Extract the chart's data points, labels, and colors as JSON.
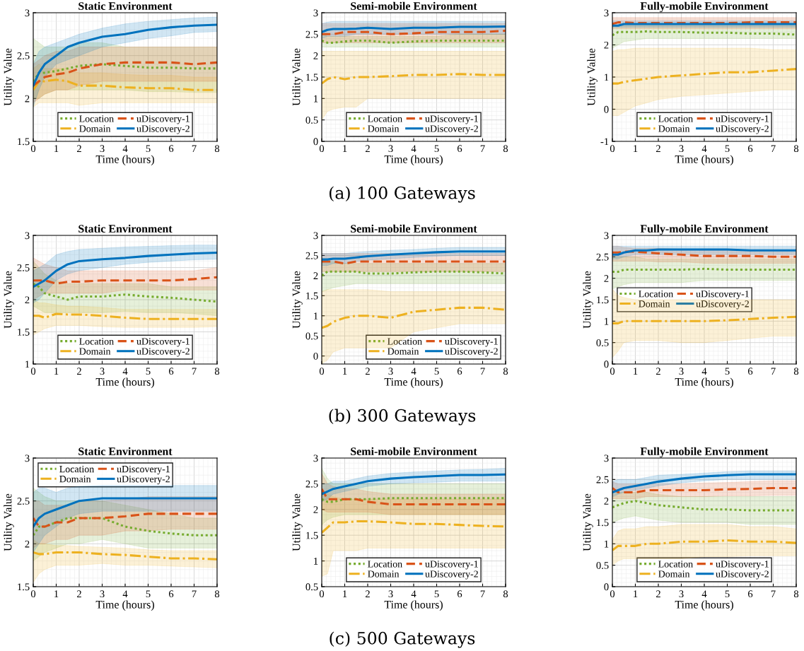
{
  "chart_data": [
    {
      "type": "line",
      "title": "Static Environment",
      "xlabel": "Time (hours)",
      "ylabel": "Utility Value",
      "xlim": [
        0,
        8
      ],
      "xticks": [
        0,
        1,
        2,
        3,
        4,
        5,
        6,
        7,
        8
      ],
      "ylim": [
        1.5,
        3
      ],
      "yticks": [
        1.5,
        2,
        2.5,
        3
      ],
      "grid": true,
      "legend": "bottom",
      "x": [
        0,
        0.25,
        0.5,
        1,
        1.5,
        2,
        3,
        4,
        5,
        6,
        7,
        8
      ],
      "series": [
        {
          "name": "Location",
          "color": "#77ac30",
          "line_style": "dotted",
          "values": [
            2.2,
            2.3,
            2.3,
            2.32,
            2.35,
            2.38,
            2.4,
            2.38,
            2.36,
            2.36,
            2.35,
            2.35
          ],
          "lower": [
            2.0,
            2.0,
            2.05,
            2.1,
            2.1,
            2.1,
            2.1,
            2.1,
            2.08,
            2.08,
            2.07,
            2.07
          ],
          "upper": [
            2.7,
            2.65,
            2.6,
            2.6,
            2.6,
            2.65,
            2.65,
            2.6,
            2.6,
            2.6,
            2.6,
            2.6
          ]
        },
        {
          "name": "Domain",
          "color": "#edb120",
          "line_style": "dashdot",
          "values": [
            2.1,
            2.2,
            2.2,
            2.22,
            2.2,
            2.15,
            2.15,
            2.13,
            2.12,
            2.12,
            2.1,
            2.1
          ],
          "lower": [
            1.9,
            1.95,
            1.95,
            1.95,
            1.95,
            1.92,
            1.95,
            1.95,
            1.95,
            1.95,
            1.95,
            1.95
          ],
          "upper": [
            2.35,
            2.4,
            2.35,
            2.35,
            2.35,
            2.3,
            2.3,
            2.28,
            2.27,
            2.27,
            2.25,
            2.25
          ]
        },
        {
          "name": "uDiscovery-1",
          "color": "#d95319",
          "line_style": "dashed",
          "values": [
            2.15,
            2.2,
            2.25,
            2.28,
            2.3,
            2.35,
            2.4,
            2.42,
            2.42,
            2.42,
            2.4,
            2.42
          ],
          "lower": [
            1.95,
            2.0,
            2.05,
            2.1,
            2.1,
            2.15,
            2.2,
            2.2,
            2.2,
            2.2,
            2.2,
            2.2
          ],
          "upper": [
            2.4,
            2.45,
            2.5,
            2.55,
            2.55,
            2.6,
            2.6,
            2.6,
            2.6,
            2.6,
            2.6,
            2.6
          ]
        },
        {
          "name": "uDiscovery-2",
          "color": "#0072bd",
          "line_style": "solid",
          "values": [
            2.15,
            2.3,
            2.4,
            2.5,
            2.6,
            2.65,
            2.72,
            2.75,
            2.8,
            2.83,
            2.85,
            2.86
          ],
          "lower": [
            1.9,
            2.1,
            2.25,
            2.4,
            2.45,
            2.5,
            2.6,
            2.65,
            2.7,
            2.73,
            2.77,
            2.78
          ],
          "upper": [
            2.4,
            2.55,
            2.6,
            2.65,
            2.7,
            2.75,
            2.82,
            2.87,
            2.9,
            2.92,
            2.94,
            2.95
          ]
        }
      ]
    },
    {
      "type": "line",
      "title": "Semi-mobile Environment",
      "xlabel": "Time (hours)",
      "ylabel": "Utility Value",
      "xlim": [
        0,
        8
      ],
      "xticks": [
        0,
        1,
        2,
        3,
        4,
        5,
        6,
        7,
        8
      ],
      "ylim": [
        0,
        3
      ],
      "yticks": [
        0,
        0.5,
        1,
        1.5,
        2,
        2.5,
        3
      ],
      "grid": true,
      "legend": "bottom",
      "annotations": [
        "(a) 100 Gateways"
      ],
      "x": [
        0,
        0.25,
        0.5,
        1,
        1.5,
        2,
        3,
        4,
        5,
        6,
        7,
        8
      ],
      "series": [
        {
          "name": "Location",
          "color": "#77ac30",
          "line_style": "dotted",
          "values": [
            2.35,
            2.3,
            2.3,
            2.33,
            2.35,
            2.35,
            2.3,
            2.33,
            2.35,
            2.35,
            2.35,
            2.35
          ],
          "lower": [
            2.2,
            2.2,
            2.2,
            2.2,
            2.2,
            2.2,
            2.2,
            2.2,
            2.2,
            2.2,
            2.2,
            2.2
          ],
          "upper": [
            2.5,
            2.45,
            2.45,
            2.45,
            2.45,
            2.45,
            2.45,
            2.45,
            2.45,
            2.5,
            2.5,
            2.5
          ]
        },
        {
          "name": "Domain",
          "color": "#edb120",
          "line_style": "dashdot",
          "values": [
            1.35,
            1.45,
            1.5,
            1.45,
            1.5,
            1.5,
            1.52,
            1.55,
            1.55,
            1.57,
            1.55,
            1.55
          ],
          "lower": [
            0.5,
            0.7,
            0.75,
            0.8,
            0.8,
            1.0,
            1.0,
            1.0,
            1.0,
            1.0,
            1.0,
            1.0
          ],
          "upper": [
            2.1,
            2.1,
            2.1,
            2.1,
            2.1,
            2.1,
            2.1,
            2.1,
            2.1,
            2.1,
            2.1,
            2.1
          ]
        },
        {
          "name": "uDiscovery-1",
          "color": "#d95319",
          "line_style": "dashed",
          "values": [
            2.5,
            2.5,
            2.5,
            2.55,
            2.55,
            2.55,
            2.5,
            2.52,
            2.55,
            2.55,
            2.55,
            2.58
          ],
          "lower": [
            2.3,
            2.3,
            2.3,
            2.3,
            2.3,
            2.3,
            2.3,
            2.3,
            2.3,
            2.3,
            2.3,
            2.3
          ],
          "upper": [
            2.75,
            2.75,
            2.75,
            2.75,
            2.75,
            2.75,
            2.75,
            2.75,
            2.75,
            2.75,
            2.75,
            2.75
          ]
        },
        {
          "name": "uDiscovery-2",
          "color": "#0072bd",
          "line_style": "solid",
          "values": [
            2.55,
            2.6,
            2.62,
            2.62,
            2.63,
            2.65,
            2.62,
            2.65,
            2.65,
            2.67,
            2.67,
            2.68
          ],
          "lower": [
            2.4,
            2.45,
            2.45,
            2.45,
            2.5,
            2.5,
            2.5,
            2.5,
            2.5,
            2.5,
            2.5,
            2.5
          ],
          "upper": [
            2.75,
            2.78,
            2.8,
            2.8,
            2.8,
            2.8,
            2.8,
            2.8,
            2.8,
            2.8,
            2.8,
            2.8
          ]
        }
      ]
    },
    {
      "type": "line",
      "title": "Fully-mobile Environment",
      "xlabel": "Time (hours)",
      "ylabel": "Utility Value",
      "xlim": [
        0,
        8
      ],
      "xticks": [
        0,
        1,
        2,
        3,
        4,
        5,
        6,
        7,
        8
      ],
      "ylim": [
        -1,
        3
      ],
      "yticks": [
        -1,
        0,
        1,
        2,
        3
      ],
      "grid": true,
      "legend": "bottom",
      "x": [
        0,
        0.25,
        0.5,
        1,
        1.5,
        2,
        3,
        4,
        5,
        6,
        7,
        8
      ],
      "series": [
        {
          "name": "Location",
          "color": "#77ac30",
          "line_style": "dotted",
          "values": [
            2.3,
            2.4,
            2.4,
            2.4,
            2.42,
            2.4,
            2.4,
            2.38,
            2.38,
            2.35,
            2.35,
            2.32
          ],
          "lower": [
            1.9,
            2.0,
            2.1,
            2.15,
            2.2,
            2.2,
            2.2,
            2.2,
            2.2,
            2.2,
            2.2,
            2.2
          ],
          "upper": [
            2.6,
            2.6,
            2.6,
            2.6,
            2.6,
            2.6,
            2.6,
            2.6,
            2.6,
            2.6,
            2.6,
            2.6
          ]
        },
        {
          "name": "Domain",
          "color": "#edb120",
          "line_style": "dashdot",
          "values": [
            0.8,
            0.8,
            0.85,
            0.9,
            0.95,
            1.0,
            1.05,
            1.1,
            1.15,
            1.15,
            1.2,
            1.25
          ],
          "lower": [
            -0.2,
            -0.2,
            -0.1,
            0.1,
            0.2,
            0.3,
            0.4,
            0.45,
            0.5,
            0.55,
            0.6,
            0.6
          ],
          "upper": [
            1.8,
            1.85,
            1.85,
            1.9,
            1.9,
            1.9,
            1.9,
            1.9,
            1.9,
            1.9,
            1.85,
            1.85
          ]
        },
        {
          "name": "uDiscovery-1",
          "color": "#d95319",
          "line_style": "dashed",
          "values": [
            2.65,
            2.7,
            2.7,
            2.68,
            2.68,
            2.68,
            2.68,
            2.68,
            2.68,
            2.7,
            2.7,
            2.7
          ],
          "lower": [
            2.5,
            2.5,
            2.5,
            2.5,
            2.5,
            2.5,
            2.5,
            2.5,
            2.5,
            2.5,
            2.5,
            2.5
          ],
          "upper": [
            2.85,
            2.85,
            2.85,
            2.85,
            2.85,
            2.85,
            2.85,
            2.85,
            2.85,
            2.85,
            2.85,
            2.85
          ]
        },
        {
          "name": "uDiscovery-2",
          "color": "#0072bd",
          "line_style": "solid",
          "values": [
            2.6,
            2.6,
            2.65,
            2.65,
            2.65,
            2.65,
            2.65,
            2.65,
            2.65,
            2.65,
            2.65,
            2.65
          ],
          "lower": [
            2.55,
            2.55,
            2.55,
            2.55,
            2.55,
            2.55,
            2.55,
            2.55,
            2.55,
            2.55,
            2.55,
            2.55
          ],
          "upper": [
            2.75,
            2.75,
            2.75,
            2.75,
            2.75,
            2.75,
            2.75,
            2.75,
            2.75,
            2.75,
            2.75,
            2.75
          ]
        }
      ]
    },
    {
      "type": "line",
      "title": "Static Environment",
      "xlabel": "Time (hours)",
      "ylabel": "Utility Value",
      "xlim": [
        0,
        8
      ],
      "xticks": [
        0,
        1,
        2,
        3,
        4,
        5,
        6,
        7,
        8
      ],
      "ylim": [
        1,
        3
      ],
      "yticks": [
        1,
        1.5,
        2,
        2.5,
        3
      ],
      "grid": true,
      "legend": "bottom",
      "x": [
        0,
        0.25,
        0.5,
        1,
        1.5,
        2,
        3,
        4,
        5,
        6,
        7,
        8
      ],
      "series": [
        {
          "name": "Location",
          "color": "#77ac30",
          "line_style": "dotted",
          "values": [
            2.25,
            2.2,
            2.1,
            2.05,
            2.0,
            2.05,
            2.05,
            2.08,
            2.05,
            2.03,
            2.0,
            1.97
          ],
          "lower": [
            1.9,
            1.85,
            1.8,
            1.8,
            1.8,
            1.8,
            1.8,
            1.82,
            1.8,
            1.8,
            1.78,
            1.75
          ],
          "upper": [
            2.6,
            2.5,
            2.4,
            2.3,
            2.25,
            2.25,
            2.25,
            2.25,
            2.25,
            2.2,
            2.2,
            2.2
          ]
        },
        {
          "name": "Domain",
          "color": "#edb120",
          "line_style": "dashdot",
          "values": [
            1.75,
            1.75,
            1.72,
            1.78,
            1.77,
            1.77,
            1.75,
            1.72,
            1.7,
            1.7,
            1.7,
            1.7
          ],
          "lower": [
            1.45,
            1.5,
            1.55,
            1.6,
            1.6,
            1.6,
            1.58,
            1.57,
            1.57,
            1.57,
            1.57,
            1.58
          ],
          "upper": [
            2.0,
            1.95,
            1.95,
            1.92,
            1.9,
            1.9,
            1.88,
            1.85,
            1.85,
            1.85,
            1.85,
            1.85
          ]
        },
        {
          "name": "uDiscovery-1",
          "color": "#d95319",
          "line_style": "dashed",
          "values": [
            2.3,
            2.3,
            2.3,
            2.25,
            2.28,
            2.28,
            2.3,
            2.3,
            2.3,
            2.3,
            2.32,
            2.35
          ],
          "lower": [
            2.0,
            2.05,
            2.1,
            2.1,
            2.1,
            2.1,
            2.1,
            2.15,
            2.15,
            2.15,
            2.15,
            2.15
          ],
          "upper": [
            2.65,
            2.6,
            2.55,
            2.5,
            2.45,
            2.45,
            2.45,
            2.45,
            2.45,
            2.45,
            2.45,
            2.5
          ]
        },
        {
          "name": "uDiscovery-2",
          "color": "#0072bd",
          "line_style": "solid",
          "values": [
            2.2,
            2.25,
            2.3,
            2.45,
            2.55,
            2.6,
            2.63,
            2.65,
            2.68,
            2.7,
            2.72,
            2.73
          ],
          "lower": [
            1.95,
            2.0,
            2.1,
            2.3,
            2.4,
            2.45,
            2.5,
            2.55,
            2.58,
            2.6,
            2.62,
            2.63
          ],
          "upper": [
            2.45,
            2.5,
            2.55,
            2.7,
            2.75,
            2.78,
            2.8,
            2.82,
            2.83,
            2.84,
            2.85,
            2.85
          ]
        }
      ]
    },
    {
      "type": "line",
      "title": "Semi-mobile Environment",
      "xlabel": "Time (hours)",
      "ylabel": "Utility Value",
      "xlim": [
        0,
        8
      ],
      "xticks": [
        0,
        1,
        2,
        3,
        4,
        5,
        6,
        7,
        8
      ],
      "ylim": [
        -0.2,
        3
      ],
      "yticks": [
        0,
        0.5,
        1,
        1.5,
        2,
        2.5,
        3
      ],
      "grid": true,
      "legend": "bottom right",
      "annotations": [
        "(b) 300 Gateways"
      ],
      "x": [
        0,
        0.25,
        0.5,
        1,
        1.5,
        2,
        3,
        4,
        5,
        6,
        7,
        8
      ],
      "series": [
        {
          "name": "Location",
          "color": "#77ac30",
          "line_style": "dotted",
          "values": [
            2.0,
            2.1,
            2.1,
            2.1,
            2.1,
            2.05,
            2.05,
            2.08,
            2.1,
            2.1,
            2.08,
            2.05
          ],
          "lower": [
            1.6,
            1.65,
            1.7,
            1.75,
            1.8,
            1.8,
            1.8,
            1.8,
            1.8,
            1.8,
            1.8,
            1.8
          ],
          "upper": [
            2.4,
            2.35,
            2.35,
            2.3,
            2.3,
            2.3,
            2.3,
            2.3,
            2.3,
            2.3,
            2.3,
            2.3
          ]
        },
        {
          "name": "Domain",
          "color": "#edb120",
          "line_style": "dashdot",
          "values": [
            0.7,
            0.75,
            0.85,
            0.95,
            1.0,
            1.0,
            0.95,
            1.1,
            1.15,
            1.2,
            1.2,
            1.15
          ],
          "lower": [
            -0.2,
            -0.1,
            0.1,
            0.2,
            0.2,
            0.2,
            0.2,
            0.6,
            0.7,
            0.8,
            0.8,
            0.8
          ],
          "upper": [
            1.6,
            1.65,
            1.65,
            1.65,
            1.65,
            1.65,
            1.6,
            1.6,
            1.6,
            1.6,
            1.6,
            1.6
          ]
        },
        {
          "name": "uDiscovery-1",
          "color": "#d95319",
          "line_style": "dashed",
          "values": [
            2.35,
            2.35,
            2.35,
            2.3,
            2.35,
            2.35,
            2.35,
            2.35,
            2.35,
            2.35,
            2.35,
            2.35
          ],
          "lower": [
            2.1,
            2.1,
            2.1,
            2.1,
            2.1,
            2.1,
            2.1,
            2.1,
            2.1,
            2.1,
            2.1,
            2.1
          ],
          "upper": [
            2.55,
            2.55,
            2.55,
            2.55,
            2.55,
            2.55,
            2.55,
            2.55,
            2.55,
            2.55,
            2.55,
            2.55
          ]
        },
        {
          "name": "uDiscovery-2",
          "color": "#0072bd",
          "line_style": "solid",
          "values": [
            2.4,
            2.4,
            2.42,
            2.42,
            2.45,
            2.48,
            2.52,
            2.55,
            2.58,
            2.6,
            2.6,
            2.6
          ],
          "lower": [
            2.25,
            2.25,
            2.3,
            2.3,
            2.35,
            2.38,
            2.42,
            2.45,
            2.48,
            2.5,
            2.5,
            2.5
          ],
          "upper": [
            2.55,
            2.55,
            2.55,
            2.55,
            2.58,
            2.6,
            2.63,
            2.65,
            2.68,
            2.7,
            2.7,
            2.7
          ]
        }
      ]
    },
    {
      "type": "line",
      "title": "Fully-mobile Environment",
      "xlabel": "Time (hours)",
      "ylabel": "Utility Value",
      "xlim": [
        0,
        8
      ],
      "xticks": [
        0,
        1,
        2,
        3,
        4,
        5,
        6,
        7,
        8
      ],
      "ylim": [
        0,
        3
      ],
      "yticks": [
        0,
        0.5,
        1,
        1.5,
        2,
        2.5,
        3
      ],
      "grid": true,
      "legend": "left",
      "x": [
        0,
        0.25,
        0.5,
        1,
        1.5,
        2,
        3,
        4,
        5,
        6,
        7,
        8
      ],
      "series": [
        {
          "name": "Location",
          "color": "#77ac30",
          "line_style": "dotted",
          "values": [
            2.15,
            2.15,
            2.2,
            2.2,
            2.2,
            2.2,
            2.2,
            2.22,
            2.2,
            2.2,
            2.2,
            2.2
          ],
          "lower": [
            1.75,
            1.8,
            1.85,
            1.9,
            1.9,
            1.9,
            1.9,
            1.95,
            1.95,
            1.95,
            1.95,
            1.95
          ],
          "upper": [
            2.5,
            2.5,
            2.5,
            2.5,
            2.45,
            2.45,
            2.45,
            2.45,
            2.45,
            2.45,
            2.45,
            2.45
          ]
        },
        {
          "name": "Domain",
          "color": "#edb120",
          "line_style": "dashdot",
          "values": [
            0.95,
            0.95,
            1.0,
            1.0,
            1.0,
            1.0,
            1.0,
            1.0,
            1.02,
            1.05,
            1.08,
            1.1
          ],
          "lower": [
            0.15,
            0.3,
            0.5,
            0.55,
            0.55,
            0.55,
            0.5,
            0.5,
            0.55,
            0.6,
            0.65,
            0.65
          ],
          "upper": [
            1.75,
            1.6,
            1.55,
            1.5,
            1.5,
            1.5,
            1.5,
            1.5,
            1.5,
            1.5,
            1.5,
            1.5
          ]
        },
        {
          "name": "uDiscovery-1",
          "color": "#d95319",
          "line_style": "dashed",
          "values": [
            2.6,
            2.6,
            2.62,
            2.62,
            2.6,
            2.58,
            2.55,
            2.52,
            2.52,
            2.52,
            2.5,
            2.5
          ],
          "lower": [
            2.4,
            2.4,
            2.4,
            2.4,
            2.4,
            2.38,
            2.38,
            2.35,
            2.35,
            2.35,
            2.35,
            2.35
          ],
          "upper": [
            2.75,
            2.75,
            2.72,
            2.7,
            2.7,
            2.7,
            2.68,
            2.65,
            2.65,
            2.65,
            2.65,
            2.65
          ]
        },
        {
          "name": "uDiscovery-2",
          "color": "#0072bd",
          "line_style": "solid",
          "values": [
            2.55,
            2.55,
            2.6,
            2.65,
            2.65,
            2.67,
            2.67,
            2.67,
            2.67,
            2.65,
            2.65,
            2.65
          ],
          "lower": [
            2.45,
            2.45,
            2.5,
            2.55,
            2.55,
            2.55,
            2.55,
            2.55,
            2.55,
            2.55,
            2.55,
            2.55
          ],
          "upper": [
            2.75,
            2.75,
            2.75,
            2.75,
            2.75,
            2.75,
            2.75,
            2.75,
            2.75,
            2.75,
            2.75,
            2.75
          ]
        }
      ]
    },
    {
      "type": "line",
      "title": "Static Environment",
      "xlabel": "Time (hours)",
      "ylabel": "Utility Value",
      "xlim": [
        0,
        8
      ],
      "xticks": [
        0,
        1,
        2,
        3,
        4,
        5,
        6,
        7,
        8
      ],
      "ylim": [
        1.5,
        3
      ],
      "yticks": [
        1.5,
        2,
        2.5,
        3
      ],
      "grid": true,
      "legend": "top left",
      "x": [
        0,
        0.25,
        0.5,
        1,
        1.5,
        2,
        3,
        4,
        5,
        6,
        7,
        8
      ],
      "series": [
        {
          "name": "Location",
          "color": "#77ac30",
          "line_style": "dotted",
          "values": [
            2.1,
            2.2,
            2.2,
            2.25,
            2.3,
            2.3,
            2.3,
            2.2,
            2.15,
            2.12,
            2.1,
            2.1
          ],
          "lower": [
            1.8,
            1.85,
            1.9,
            1.95,
            2.0,
            2.0,
            2.05,
            2.0,
            1.95,
            1.95,
            1.95,
            1.95
          ],
          "upper": [
            2.65,
            2.6,
            2.55,
            2.5,
            2.5,
            2.5,
            2.5,
            2.45,
            2.4,
            2.35,
            2.3,
            2.3
          ]
        },
        {
          "name": "Domain",
          "color": "#edb120",
          "line_style": "dashdot",
          "values": [
            1.9,
            1.88,
            1.88,
            1.9,
            1.9,
            1.9,
            1.88,
            1.87,
            1.85,
            1.83,
            1.83,
            1.82
          ],
          "lower": [
            1.55,
            1.65,
            1.7,
            1.75,
            1.75,
            1.75,
            1.77,
            1.75,
            1.75,
            1.74,
            1.73,
            1.72
          ],
          "upper": [
            2.05,
            2.0,
            2.0,
            1.98,
            1.98,
            1.97,
            1.96,
            1.95,
            1.93,
            1.92,
            1.92,
            1.92
          ]
        },
        {
          "name": "uDiscovery-1",
          "color": "#d95319",
          "line_style": "dashed",
          "values": [
            2.3,
            2.2,
            2.2,
            2.25,
            2.25,
            2.3,
            2.3,
            2.32,
            2.35,
            2.35,
            2.35,
            2.35
          ],
          "lower": [
            1.95,
            2.0,
            2.0,
            2.05,
            2.05,
            2.1,
            2.1,
            2.15,
            2.15,
            2.17,
            2.17,
            2.17
          ],
          "upper": [
            2.5,
            2.5,
            2.45,
            2.45,
            2.45,
            2.5,
            2.5,
            2.52,
            2.55,
            2.55,
            2.55,
            2.55
          ]
        },
        {
          "name": "uDiscovery-2",
          "color": "#0072bd",
          "line_style": "solid",
          "values": [
            2.2,
            2.3,
            2.35,
            2.4,
            2.45,
            2.5,
            2.53,
            2.53,
            2.53,
            2.53,
            2.53,
            2.53
          ],
          "lower": [
            1.9,
            2.0,
            2.1,
            2.2,
            2.3,
            2.35,
            2.38,
            2.38,
            2.38,
            2.38,
            2.38,
            2.38
          ],
          "upper": [
            2.6,
            2.65,
            2.65,
            2.6,
            2.65,
            2.67,
            2.68,
            2.68,
            2.68,
            2.68,
            2.68,
            2.68
          ]
        }
      ]
    },
    {
      "type": "line",
      "title": "Semi-mobile Environment",
      "xlabel": "Time (hours)",
      "ylabel": "Utility Value",
      "xlim": [
        0,
        8
      ],
      "xticks": [
        0,
        1,
        2,
        3,
        4,
        5,
        6,
        7,
        8
      ],
      "ylim": [
        0.5,
        3
      ],
      "yticks": [
        0.5,
        1,
        1.5,
        2,
        2.5,
        3
      ],
      "grid": true,
      "legend": "bottom",
      "annotations": [
        "(c) 500 Gateways"
      ],
      "x": [
        0,
        0.25,
        0.5,
        1,
        1.5,
        2,
        3,
        4,
        5,
        6,
        7,
        8
      ],
      "series": [
        {
          "name": "Location",
          "color": "#77ac30",
          "line_style": "dotted",
          "values": [
            2.2,
            2.15,
            2.15,
            2.2,
            2.2,
            2.2,
            2.22,
            2.22,
            2.22,
            2.22,
            2.22,
            2.22
          ],
          "lower": [
            1.7,
            1.8,
            1.85,
            1.9,
            1.9,
            1.9,
            1.9,
            1.9,
            1.9,
            1.9,
            1.9,
            1.9
          ],
          "upper": [
            2.8,
            2.6,
            2.5,
            2.5,
            2.5,
            2.5,
            2.5,
            2.5,
            2.5,
            2.5,
            2.5,
            2.5
          ]
        },
        {
          "name": "Domain",
          "color": "#edb120",
          "line_style": "dashdot",
          "values": [
            1.55,
            1.65,
            1.75,
            1.75,
            1.77,
            1.77,
            1.75,
            1.72,
            1.72,
            1.7,
            1.68,
            1.67
          ],
          "lower": [
            0.7,
            0.75,
            1.2,
            1.2,
            1.2,
            1.25,
            1.25,
            1.25,
            1.25,
            1.25,
            1.25,
            1.25
          ],
          "upper": [
            2.3,
            2.3,
            2.25,
            2.2,
            2.2,
            2.2,
            2.2,
            2.2,
            2.2,
            2.2,
            2.2,
            2.2
          ]
        },
        {
          "name": "uDiscovery-1",
          "color": "#d95319",
          "line_style": "dashed",
          "values": [
            2.4,
            2.2,
            2.2,
            2.2,
            2.2,
            2.15,
            2.1,
            2.1,
            2.1,
            2.1,
            2.1,
            2.1
          ],
          "lower": [
            2.0,
            1.95,
            1.95,
            1.95,
            1.95,
            1.95,
            1.9,
            1.9,
            1.9,
            1.9,
            1.9,
            1.9
          ],
          "upper": [
            2.7,
            2.5,
            2.45,
            2.4,
            2.4,
            2.35,
            2.3,
            2.3,
            2.3,
            2.3,
            2.3,
            2.3
          ]
        },
        {
          "name": "uDiscovery-2",
          "color": "#0072bd",
          "line_style": "solid",
          "values": [
            2.3,
            2.35,
            2.4,
            2.45,
            2.5,
            2.55,
            2.6,
            2.63,
            2.65,
            2.67,
            2.67,
            2.68
          ],
          "lower": [
            2.15,
            2.2,
            2.3,
            2.35,
            2.4,
            2.45,
            2.5,
            2.52,
            2.53,
            2.55,
            2.55,
            2.55
          ],
          "upper": [
            2.5,
            2.5,
            2.55,
            2.55,
            2.6,
            2.65,
            2.7,
            2.73,
            2.75,
            2.77,
            2.78,
            2.8
          ]
        }
      ]
    },
    {
      "type": "line",
      "title": "Fully-mobile Environment",
      "xlabel": "Time (hours)",
      "ylabel": "Utility Value",
      "xlim": [
        0,
        8
      ],
      "xticks": [
        0,
        1,
        2,
        3,
        4,
        5,
        6,
        7,
        8
      ],
      "ylim": [
        0,
        3
      ],
      "yticks": [
        0,
        0.5,
        1,
        1.5,
        2,
        2.5,
        3
      ],
      "grid": true,
      "legend": "bottom",
      "x": [
        0,
        0.25,
        0.5,
        1,
        1.5,
        2,
        3,
        4,
        5,
        6,
        7,
        8
      ],
      "series": [
        {
          "name": "Location",
          "color": "#77ac30",
          "line_style": "dotted",
          "values": [
            1.85,
            1.9,
            1.95,
            2.0,
            1.95,
            1.9,
            1.85,
            1.8,
            1.8,
            1.78,
            1.78,
            1.78
          ],
          "lower": [
            1.5,
            1.55,
            1.6,
            1.65,
            1.6,
            1.55,
            1.5,
            1.5,
            1.5,
            1.45,
            1.45,
            1.45
          ],
          "upper": [
            2.15,
            2.2,
            2.2,
            2.2,
            2.2,
            2.15,
            2.1,
            2.1,
            2.1,
            2.1,
            2.1,
            2.1
          ]
        },
        {
          "name": "Domain",
          "color": "#edb120",
          "line_style": "dashdot",
          "values": [
            0.85,
            0.95,
            0.95,
            0.95,
            1.0,
            1.0,
            1.05,
            1.05,
            1.08,
            1.05,
            1.05,
            1.02
          ],
          "lower": [
            0.5,
            0.6,
            0.65,
            0.65,
            0.65,
            0.65,
            0.65,
            0.7,
            0.7,
            0.72,
            0.72,
            0.72
          ],
          "upper": [
            1.1,
            1.3,
            1.35,
            1.35,
            1.4,
            1.4,
            1.45,
            1.45,
            1.45,
            1.4,
            1.4,
            1.35
          ]
        },
        {
          "name": "uDiscovery-1",
          "color": "#d95319",
          "line_style": "dashed",
          "values": [
            2.3,
            2.2,
            2.2,
            2.2,
            2.25,
            2.25,
            2.25,
            2.25,
            2.27,
            2.28,
            2.3,
            2.3
          ],
          "lower": [
            2.05,
            2.05,
            2.05,
            2.05,
            2.1,
            2.1,
            2.1,
            2.1,
            2.12,
            2.12,
            2.13,
            2.13
          ],
          "upper": [
            2.45,
            2.4,
            2.4,
            2.4,
            2.4,
            2.4,
            2.4,
            2.42,
            2.43,
            2.45,
            2.47,
            2.47
          ]
        },
        {
          "name": "uDiscovery-2",
          "color": "#0072bd",
          "line_style": "solid",
          "values": [
            2.2,
            2.25,
            2.3,
            2.35,
            2.4,
            2.45,
            2.52,
            2.57,
            2.6,
            2.62,
            2.62,
            2.62
          ],
          "lower": [
            2.1,
            2.15,
            2.2,
            2.25,
            2.3,
            2.35,
            2.42,
            2.47,
            2.5,
            2.5,
            2.5,
            2.5
          ],
          "upper": [
            2.45,
            2.5,
            2.5,
            2.5,
            2.55,
            2.6,
            2.62,
            2.65,
            2.68,
            2.7,
            2.7,
            2.7
          ]
        }
      ]
    }
  ]
}
